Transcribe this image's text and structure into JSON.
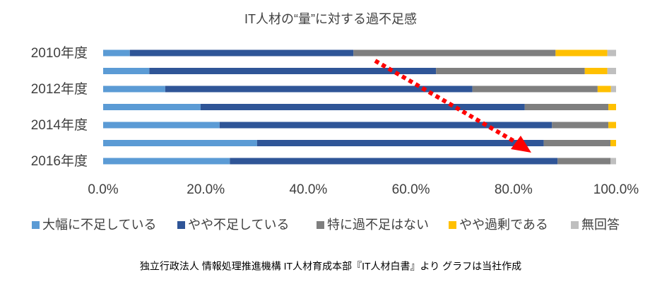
{
  "chart_data": {
    "type": "stacked-bar-horizontal",
    "title": "IT人材の“量”に対する過不足感",
    "categories": [
      "2010年度",
      null,
      "2012年度",
      null,
      "2014年度",
      null,
      "2016年度"
    ],
    "series": [
      {
        "name": "大幅に不足している",
        "color": "#5b9bd5",
        "values": [
          5.2,
          9.0,
          12.1,
          19.0,
          22.7,
          30.0,
          24.7
        ]
      },
      {
        "name": "やや不足している",
        "color": "#2f5597",
        "values": [
          43.6,
          55.9,
          59.9,
          63.2,
          64.8,
          55.9,
          63.9
        ]
      },
      {
        "name": "特に過不足はない",
        "color": "#7f7f7f",
        "values": [
          39.4,
          29.0,
          24.4,
          16.3,
          11.0,
          13.0,
          10.3
        ]
      },
      {
        "name": "やや過剰である",
        "color": "#ffc000",
        "values": [
          10.1,
          4.4,
          2.6,
          1.5,
          1.5,
          1.1,
          0
        ]
      },
      {
        "name": "無回答",
        "color": "#bfbfbf",
        "values": [
          1.7,
          1.7,
          1.0,
          0,
          0,
          0,
          1.1
        ]
      }
    ],
    "xlim": [
      0,
      100
    ],
    "xticks": [
      {
        "value": 0,
        "label": "0.0%"
      },
      {
        "value": 20,
        "label": "20.0%"
      },
      {
        "value": 40,
        "label": "40.0%"
      },
      {
        "value": 60,
        "label": "60.0%"
      },
      {
        "value": 80,
        "label": "80.0%"
      },
      {
        "value": 100,
        "label": "100.0%"
      }
    ],
    "source": "独立行政法人 情報処理推進機構 IT人材育成本部『IT人材白書』より グラフは当社作成"
  }
}
